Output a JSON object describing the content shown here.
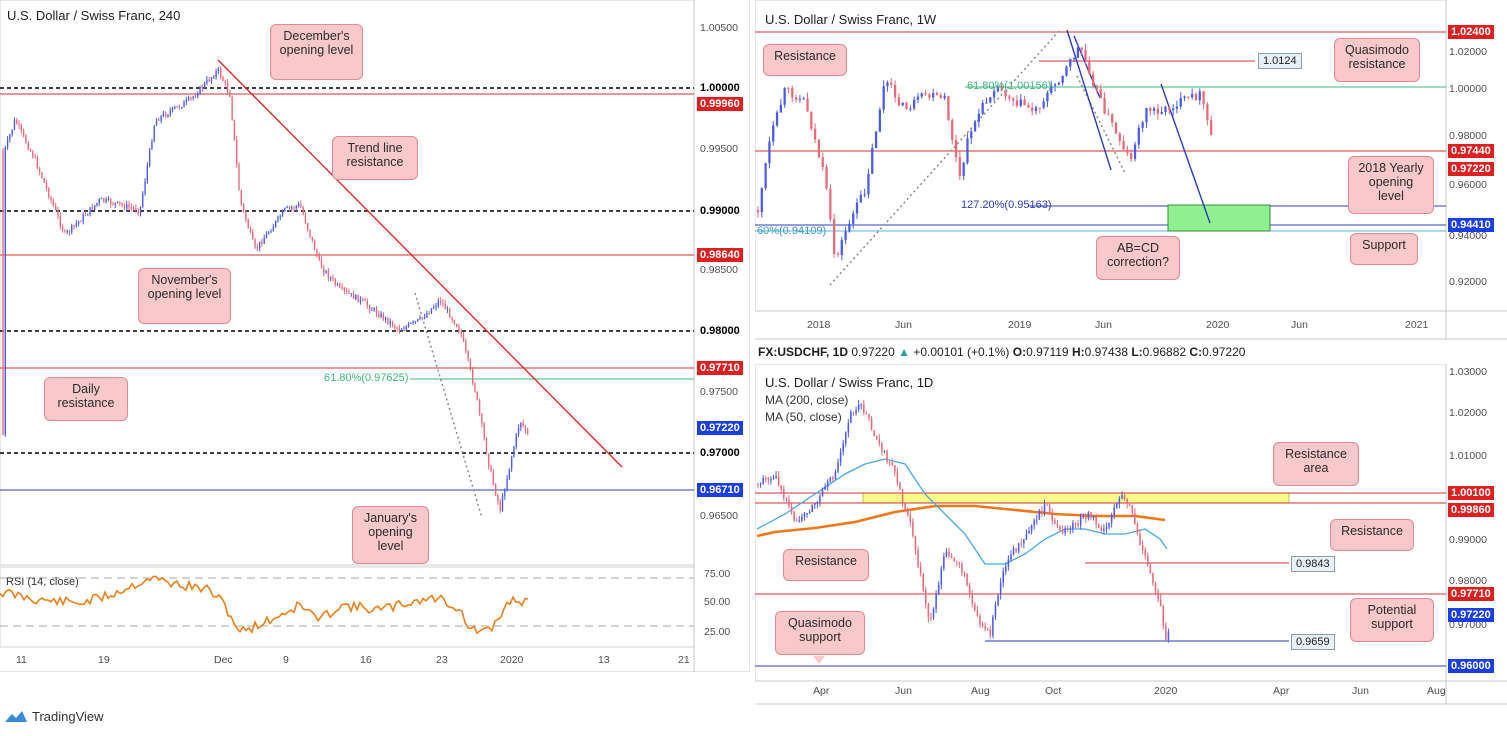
{
  "panels": {
    "h4": {
      "title": "U.S. Dollar / Swiss Franc, 240",
      "price_labels": {
        "p1": "1.00000",
        "p2": "0.99960",
        "p3": "0.99000",
        "p4": "0.98640",
        "p5": "0.98000",
        "p6": "0.97710",
        "p7": "0.97220",
        "p8": "0.97000",
        "p9": "0.96710"
      },
      "y_ticks": [
        "1.00500",
        "0.99500",
        "0.98500",
        "0.97500",
        "0.96500"
      ],
      "x_ticks": [
        "11",
        "19",
        "Dec",
        "9",
        "16",
        "23",
        "2020",
        "13",
        "21"
      ],
      "callouts": {
        "december": "December's opening level",
        "trend": "Trend line resistance",
        "november": "November's opening level",
        "daily_res": "Daily resistance",
        "january": "January's opening level"
      },
      "fib": "61.80%(0.97625)",
      "rsi_label": "RSI (14, close)",
      "rsi_ticks": [
        "75.00",
        "50.00",
        "25.00"
      ]
    },
    "weekly": {
      "title": "U.S. Dollar / Swiss Franc, 1W",
      "price_labels": {
        "p1": "1.02400",
        "p2": "0.97440",
        "p3": "0.97220",
        "p4": "0.94410"
      },
      "y_ticks": [
        "1.02000",
        "1.00000",
        "0.98000",
        "0.96000",
        "0.94000",
        "0.92000"
      ],
      "x_ticks": [
        "2018",
        "Jun",
        "2019",
        "Jun",
        "2020",
        "Jun",
        "2021"
      ],
      "callouts": {
        "resistance": "Resistance",
        "quasimodo": "Quasimodo resistance",
        "yearly": "2018 Yearly opening level",
        "support": "Support",
        "abcd": "AB=CD correction?"
      },
      "box_label": "1.0124",
      "fib_top": "61.80%(1.00156)",
      "fib_ext": "127.20%(0.95163)",
      "fib_60": "60%(0.94109)"
    },
    "daily": {
      "ohlc": {
        "symbol": "FX:USDCHF, 1D",
        "price": "0.97220",
        "change": "+0.00101 (+0.1%)",
        "o_label": "O:",
        "o": "0.97119",
        "h_label": "H:",
        "h": "0.97438",
        "l_label": "L:",
        "l": "0.96882",
        "c_label": "C:",
        "c": "0.97220"
      },
      "title": "U.S. Dollar / Swiss Franc, 1D",
      "ma200": "MA (200, close)",
      "ma50": "MA (50, close)",
      "price_labels": {
        "p1": "1.00100",
        "p2": "0.99860",
        "p3": "0.97710",
        "p4": "0.97220",
        "p5": "0.96000"
      },
      "y_ticks": [
        "1.03000",
        "1.02000",
        "1.01000",
        "0.99000",
        "0.98000",
        "0.97000"
      ],
      "x_ticks": [
        "Apr",
        "Jun",
        "Aug",
        "Oct",
        "2020",
        "Apr",
        "Jun",
        "Aug"
      ],
      "callouts": {
        "res_area": "Resistance area",
        "resistance_r": "Resistance",
        "resistance_l": "Resistance",
        "quasimodo": "Quasimodo support",
        "potential": "Potential support"
      },
      "box1": "0.9843",
      "box2": "0.9659"
    }
  },
  "brand": "TradingView",
  "chart_data": [
    {
      "type": "line",
      "title": "U.S. Dollar / Swiss Franc, 240",
      "ylim": [
        0.9625,
        1.0065
      ],
      "horizontal_levels": [
        1.0,
        0.9996,
        0.99,
        0.9864,
        0.98,
        0.9771,
        0.97625,
        0.97,
        0.9671
      ],
      "last_price": 0.9722
    },
    {
      "type": "line",
      "title": "U.S. Dollar / Swiss Franc, 1W",
      "ylim": [
        0.91,
        1.026
      ],
      "horizontal_levels": [
        1.024,
        1.0124,
        1.00156,
        0.9744,
        0.95163,
        0.9441,
        0.94109
      ],
      "last_price": 0.9722
    },
    {
      "type": "line",
      "title": "U.S. Dollar / Swiss Franc, 1D",
      "ylim": [
        0.958,
        1.031
      ],
      "horizontal_levels": [
        1.001,
        0.9986,
        0.9843,
        0.9771,
        0.9659,
        0.96
      ],
      "series": [
        {
          "name": "MA (200, close)"
        },
        {
          "name": "MA (50, close)"
        }
      ],
      "last_price": 0.9722
    }
  ]
}
